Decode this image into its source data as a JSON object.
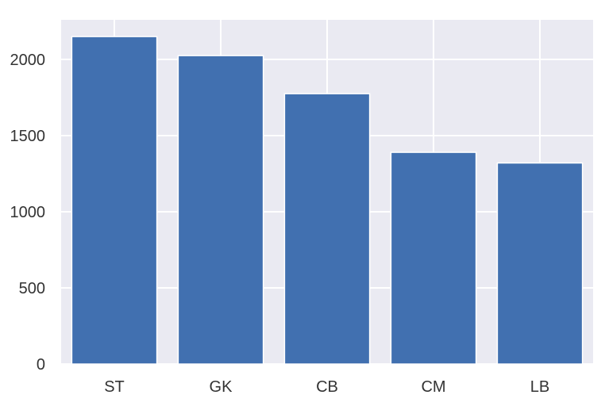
{
  "chart_data": {
    "type": "bar",
    "title": "",
    "xlabel": "",
    "ylabel": "",
    "categories": [
      "ST",
      "GK",
      "CB",
      "CM",
      "LB"
    ],
    "values": [
      2150,
      2025,
      1775,
      1390,
      1320
    ],
    "ylim": [
      0,
      2260
    ],
    "yticks": [
      0,
      500,
      1000,
      1500,
      2000
    ],
    "grid": true,
    "legend": "none",
    "colors": {
      "bar": "#4170b0",
      "plot_background": "#eaeaf2",
      "grid": "#ffffff",
      "text": "#333333"
    }
  }
}
